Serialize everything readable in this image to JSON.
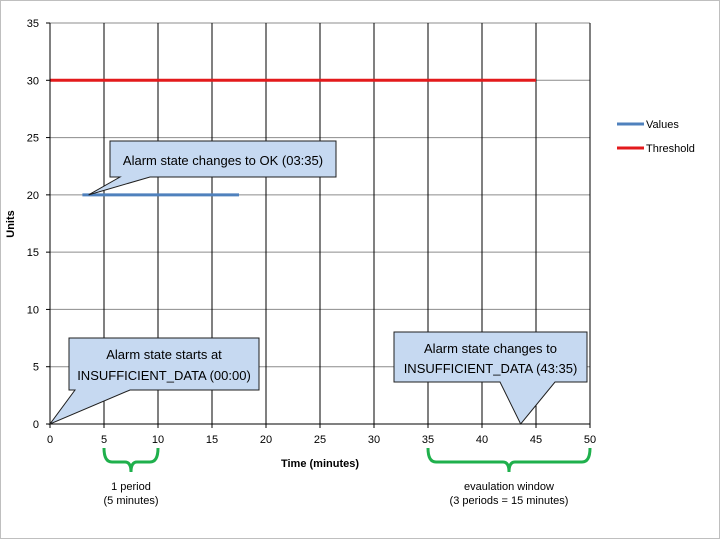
{
  "chart_data": {
    "type": "line",
    "xlabel": "Time (minutes)",
    "ylabel": "Units",
    "xlim": [
      0,
      50
    ],
    "ylim": [
      0,
      35
    ],
    "x_ticks": [
      0,
      5,
      10,
      15,
      20,
      25,
      30,
      35,
      40,
      45,
      50
    ],
    "y_ticks": [
      0,
      5,
      10,
      15,
      20,
      25,
      30,
      35
    ],
    "grid": true,
    "legend_position": "right",
    "series": [
      {
        "name": "Values",
        "color": "#4f81bd",
        "points": [
          [
            3,
            20
          ],
          [
            17.5,
            20
          ]
        ]
      },
      {
        "name": "Threshold",
        "color": "#e31a1c",
        "points": [
          [
            0,
            30
          ],
          [
            45,
            30
          ]
        ]
      }
    ],
    "annotations": [
      {
        "id": "ok",
        "lines": [
          "Alarm state changes to OK (03:35)"
        ],
        "pointer": [
          3.58,
          20
        ]
      },
      {
        "id": "start",
        "lines": [
          "Alarm state starts at",
          "INSUFFICIENT_DATA (00:00)"
        ],
        "pointer": [
          0,
          0
        ]
      },
      {
        "id": "end",
        "lines": [
          "Alarm state changes to",
          "INSUFFICIENT_DATA (43:35)"
        ],
        "pointer": [
          43.58,
          0
        ]
      }
    ],
    "brackets": [
      {
        "id": "period",
        "from": 5,
        "to": 10,
        "color": "#1fb04c",
        "lines": [
          "1 period",
          "(5 minutes)"
        ]
      },
      {
        "id": "window",
        "from": 35,
        "to": 50,
        "color": "#1fb04c",
        "lines": [
          "evaulation window",
          "(3 periods = 15 minutes)"
        ]
      }
    ]
  }
}
